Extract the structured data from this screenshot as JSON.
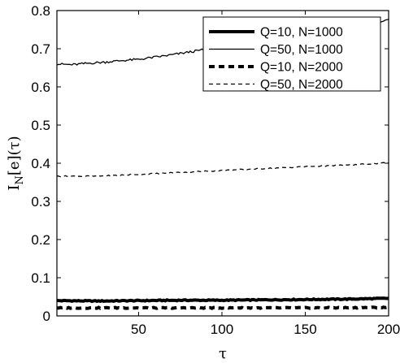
{
  "chart_data": {
    "type": "line",
    "xlabel": "τ",
    "ylabel": "I",
    "ylabel_sub": "N",
    "ylabel_rest": "[e](τ)",
    "xlim": [
      1,
      200
    ],
    "ylim": [
      0,
      0.8
    ],
    "xticks": [
      50,
      100,
      150,
      200
    ],
    "yticks": [
      0,
      0.1,
      0.2,
      0.3,
      0.4,
      0.5,
      0.6,
      0.7,
      0.8
    ],
    "ytick_labels": [
      "0",
      "0.1",
      "0.2",
      "0.3",
      "0.4",
      "0.5",
      "0.6",
      "0.7",
      "0.8"
    ],
    "grid": false,
    "legend": "top-right",
    "series": [
      {
        "name": "Q=10, N=1000",
        "style": "thick-solid",
        "x": [
          1,
          25,
          50,
          75,
          100,
          125,
          150,
          175,
          200
        ],
        "values": [
          0.04,
          0.039,
          0.04,
          0.041,
          0.041,
          0.042,
          0.043,
          0.044,
          0.046
        ]
      },
      {
        "name": "Q=50, N=1000",
        "style": "thin-solid",
        "x": [
          1,
          10,
          20,
          30,
          40,
          50,
          60,
          70,
          80,
          90,
          95,
          100,
          120,
          140,
          160,
          180,
          200
        ],
        "values": [
          0.66,
          0.658,
          0.662,
          0.665,
          0.669,
          0.672,
          0.678,
          0.684,
          0.691,
          0.698,
          0.7,
          0.702,
          0.715,
          0.728,
          0.742,
          0.757,
          0.775
        ]
      },
      {
        "name": "Q=10, N=2000",
        "style": "thick-dashed",
        "x": [
          1,
          50,
          100,
          150,
          200
        ],
        "values": [
          0.021,
          0.021,
          0.021,
          0.021,
          0.022
        ]
      },
      {
        "name": "Q=50, N=2000",
        "style": "thin-dashed",
        "x": [
          1,
          25,
          50,
          75,
          100,
          125,
          150,
          175,
          200
        ],
        "values": [
          0.366,
          0.366,
          0.371,
          0.376,
          0.381,
          0.386,
          0.391,
          0.395,
          0.401
        ]
      }
    ]
  }
}
